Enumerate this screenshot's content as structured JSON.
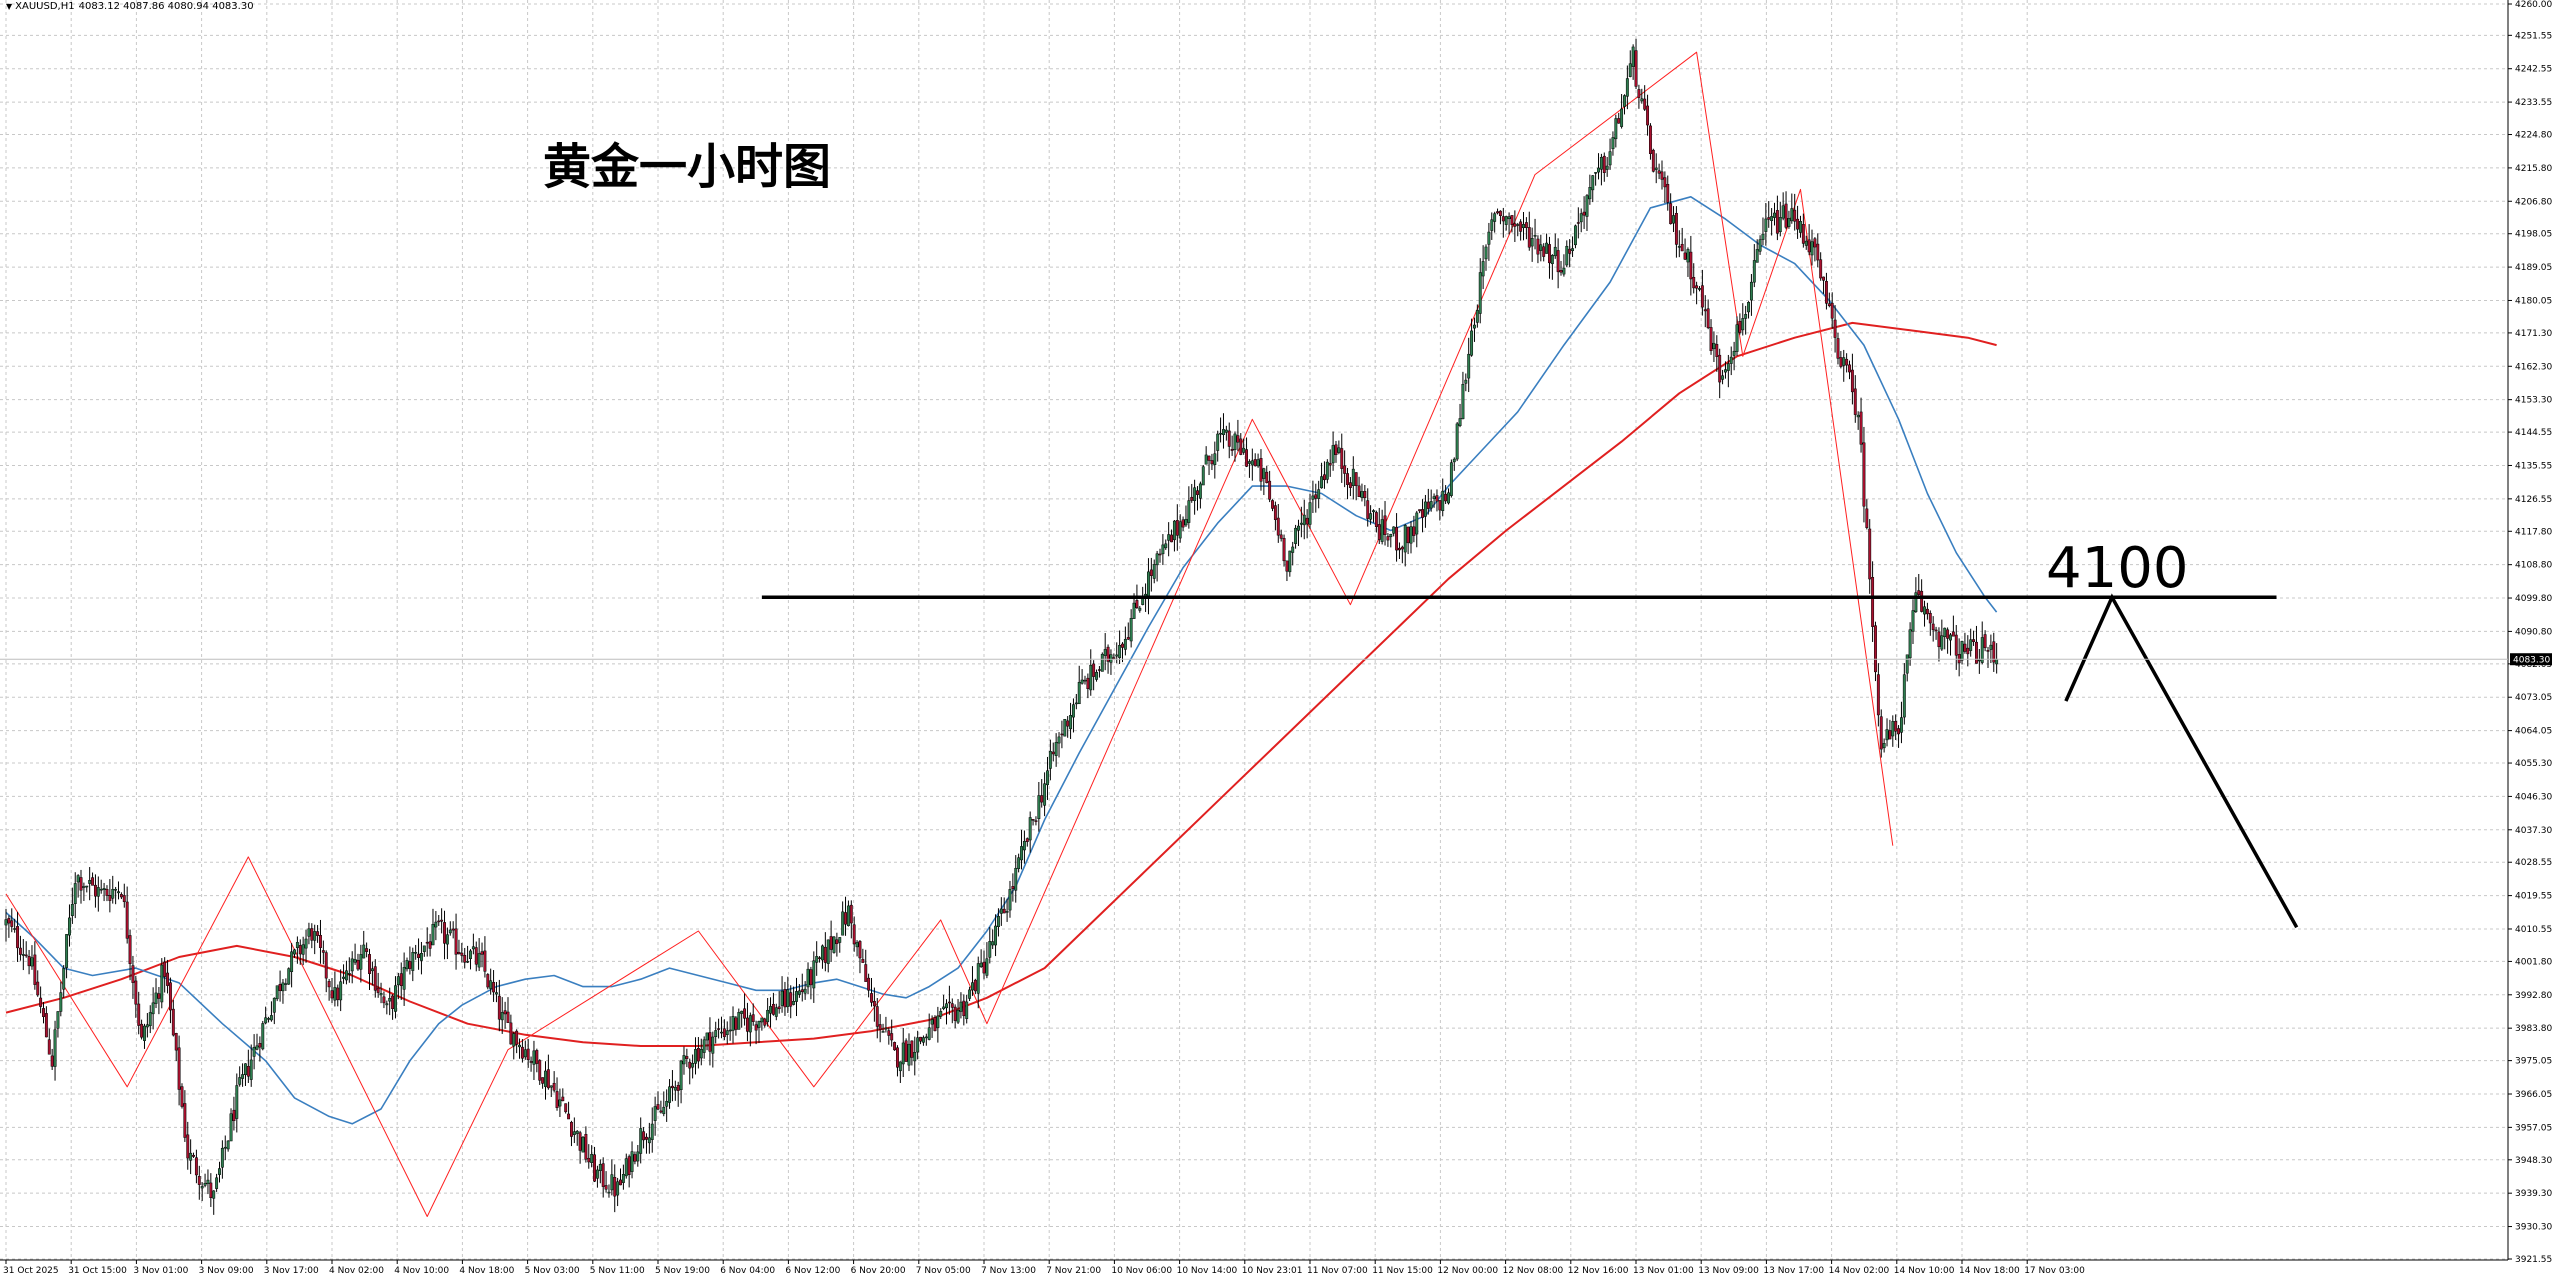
{
  "header": {
    "symbol": "XAUUSD,H1",
    "ohlc": "4083.12 4087.86 4080.94 4083.30"
  },
  "annotations": {
    "title": "黄金一小时图",
    "level_label": "4100"
  },
  "colors": {
    "bull_candle": "#2e7d4f",
    "bear_candle": "#a8102e",
    "ma_fast": "#3a7fc0",
    "ma_slow": "#e02020",
    "zigzag": "#ff2020",
    "grid": "#c8c8c8",
    "drawing": "#000000"
  },
  "chart_data": {
    "type": "candlestick",
    "symbol": "XAUUSD",
    "timeframe": "H1",
    "ylim": [
      3921.55,
      4260.0
    ],
    "y_ticks": [
      "4260.00",
      "4251.55",
      "4242.55",
      "4233.55",
      "4224.80",
      "4215.80",
      "4206.80",
      "4198.05",
      "4189.05",
      "4180.05",
      "4171.30",
      "4162.30",
      "4153.30",
      "4144.55",
      "4135.55",
      "4126.55",
      "4117.80",
      "4108.80",
      "4099.80",
      "4090.80",
      "4082.05",
      "4073.05",
      "4064.05",
      "4055.30",
      "4046.30",
      "4037.30",
      "4028.55",
      "4019.55",
      "4010.55",
      "4001.80",
      "3992.80",
      "3983.80",
      "3975.05",
      "3966.05",
      "3957.05",
      "3948.30",
      "3939.30",
      "3930.30",
      "3921.55"
    ],
    "x_ticks": [
      "31 Oct 2025",
      "31 Oct 15:00",
      "3 Nov 01:00",
      "3 Nov 09:00",
      "3 Nov 17:00",
      "4 Nov 02:00",
      "4 Nov 10:00",
      "4 Nov 18:00",
      "5 Nov 03:00",
      "5 Nov 11:00",
      "5 Nov 19:00",
      "6 Nov 04:00",
      "6 Nov 12:00",
      "6 Nov 20:00",
      "7 Nov 05:00",
      "7 Nov 13:00",
      "7 Nov 21:00",
      "10 Nov 06:00",
      "10 Nov 14:00",
      "10 Nov 23:01",
      "11 Nov 07:00",
      "11 Nov 15:00",
      "12 Nov 00:00",
      "12 Nov 08:00",
      "12 Nov 16:00",
      "13 Nov 01:00",
      "13 Nov 09:00",
      "13 Nov 17:00",
      "14 Nov 02:00",
      "14 Nov 10:00",
      "14 Nov 18:00",
      "17 Nov 03:00"
    ],
    "current_price": 4083.3,
    "horizontal_level": 4100,
    "close_path": [
      [
        0,
        4012
      ],
      [
        8,
        4003
      ],
      [
        16,
        3975
      ],
      [
        24,
        4025
      ],
      [
        33,
        4020
      ],
      [
        40,
        4022
      ],
      [
        47,
        3980
      ],
      [
        55,
        4000
      ],
      [
        63,
        3950
      ],
      [
        72,
        3938
      ],
      [
        80,
        3965
      ],
      [
        88,
        3982
      ],
      [
        96,
        3998
      ],
      [
        106,
        4010
      ],
      [
        114,
        3992
      ],
      [
        124,
        4006
      ],
      [
        132,
        3988
      ],
      [
        140,
        4002
      ],
      [
        150,
        4010
      ],
      [
        158,
        4005
      ],
      [
        165,
        4001
      ],
      [
        172,
        3986
      ],
      [
        180,
        3978
      ],
      [
        188,
        3970
      ],
      [
        196,
        3958
      ],
      [
        204,
        3945
      ],
      [
        212,
        3940
      ],
      [
        220,
        3955
      ],
      [
        228,
        3962
      ],
      [
        236,
        3975
      ],
      [
        244,
        3981
      ],
      [
        252,
        3985
      ],
      [
        260,
        3986
      ],
      [
        268,
        3990
      ],
      [
        276,
        3994
      ],
      [
        284,
        4004
      ],
      [
        292,
        4015
      ],
      [
        300,
        3990
      ],
      [
        308,
        3976
      ],
      [
        316,
        3980
      ],
      [
        324,
        3986
      ],
      [
        332,
        3990
      ],
      [
        340,
        4003
      ],
      [
        348,
        4020
      ],
      [
        356,
        4040
      ],
      [
        364,
        4060
      ],
      [
        372,
        4075
      ],
      [
        380,
        4082
      ],
      [
        388,
        4090
      ],
      [
        396,
        4105
      ],
      [
        404,
        4116
      ],
      [
        412,
        4128
      ],
      [
        420,
        4143
      ],
      [
        428,
        4140
      ],
      [
        436,
        4132
      ],
      [
        444,
        4110
      ],
      [
        452,
        4125
      ],
      [
        460,
        4140
      ],
      [
        468,
        4130
      ],
      [
        476,
        4118
      ],
      [
        484,
        4115
      ],
      [
        492,
        4123
      ],
      [
        500,
        4128
      ],
      [
        508,
        4172
      ],
      [
        516,
        4205
      ],
      [
        524,
        4200
      ],
      [
        532,
        4195
      ],
      [
        540,
        4190
      ],
      [
        548,
        4208
      ],
      [
        556,
        4220
      ],
      [
        564,
        4245
      ],
      [
        570,
        4220
      ],
      [
        578,
        4200
      ],
      [
        586,
        4185
      ],
      [
        594,
        4160
      ],
      [
        602,
        4175
      ],
      [
        610,
        4200
      ],
      [
        618,
        4203
      ],
      [
        626,
        4195
      ],
      [
        634,
        4170
      ],
      [
        642,
        4150
      ],
      [
        650,
        4060
      ],
      [
        656,
        4065
      ],
      [
        662,
        4100
      ],
      [
        670,
        4090
      ],
      [
        678,
        4085
      ],
      [
        686,
        4086
      ],
      [
        690,
        4083.3
      ]
    ],
    "ma_fast_path": [
      [
        0,
        4015
      ],
      [
        10,
        4008
      ],
      [
        20,
        4000
      ],
      [
        30,
        3998
      ],
      [
        45,
        4000
      ],
      [
        60,
        3996
      ],
      [
        75,
        3985
      ],
      [
        90,
        3975
      ],
      [
        100,
        3965
      ],
      [
        112,
        3960
      ],
      [
        120,
        3958
      ],
      [
        130,
        3962
      ],
      [
        140,
        3975
      ],
      [
        150,
        3985
      ],
      [
        158,
        3990
      ],
      [
        170,
        3995
      ],
      [
        180,
        3997
      ],
      [
        190,
        3998
      ],
      [
        200,
        3995
      ],
      [
        210,
        3995
      ],
      [
        220,
        3997
      ],
      [
        230,
        4000
      ],
      [
        240,
        3998
      ],
      [
        250,
        3996
      ],
      [
        260,
        3994
      ],
      [
        270,
        3994
      ],
      [
        280,
        3996
      ],
      [
        288,
        3997
      ],
      [
        296,
        3995
      ],
      [
        304,
        3993
      ],
      [
        312,
        3992
      ],
      [
        320,
        3995
      ],
      [
        330,
        4000
      ],
      [
        340,
        4010
      ],
      [
        350,
        4022
      ],
      [
        360,
        4040
      ],
      [
        372,
        4058
      ],
      [
        384,
        4075
      ],
      [
        396,
        4092
      ],
      [
        408,
        4108
      ],
      [
        420,
        4120
      ],
      [
        432,
        4130
      ],
      [
        444,
        4130
      ],
      [
        456,
        4128
      ],
      [
        468,
        4122
      ],
      [
        480,
        4118
      ],
      [
        492,
        4122
      ],
      [
        500,
        4130
      ],
      [
        512,
        4140
      ],
      [
        524,
        4150
      ],
      [
        540,
        4168
      ],
      [
        556,
        4185
      ],
      [
        570,
        4205
      ],
      [
        584,
        4208
      ],
      [
        596,
        4202
      ],
      [
        608,
        4195
      ],
      [
        620,
        4190
      ],
      [
        632,
        4180
      ],
      [
        644,
        4168
      ],
      [
        656,
        4148
      ],
      [
        666,
        4128
      ],
      [
        676,
        4112
      ],
      [
        686,
        4100
      ],
      [
        690,
        4096
      ]
    ],
    "ma_slow_path": [
      [
        0,
        3988
      ],
      [
        20,
        3992
      ],
      [
        40,
        3997
      ],
      [
        60,
        4003
      ],
      [
        80,
        4006
      ],
      [
        100,
        4003
      ],
      [
        120,
        3998
      ],
      [
        140,
        3991
      ],
      [
        160,
        3985
      ],
      [
        180,
        3982
      ],
      [
        200,
        3980
      ],
      [
        220,
        3979
      ],
      [
        240,
        3979
      ],
      [
        260,
        3980
      ],
      [
        280,
        3981
      ],
      [
        300,
        3983
      ],
      [
        320,
        3986
      ],
      [
        340,
        3992
      ],
      [
        360,
        4000
      ],
      [
        380,
        4015
      ],
      [
        400,
        4030
      ],
      [
        420,
        4045
      ],
      [
        440,
        4060
      ],
      [
        460,
        4075
      ],
      [
        480,
        4090
      ],
      [
        500,
        4105
      ],
      [
        520,
        4118
      ],
      [
        540,
        4130
      ],
      [
        560,
        4142
      ],
      [
        580,
        4155
      ],
      [
        600,
        4165
      ],
      [
        620,
        4170
      ],
      [
        640,
        4174
      ],
      [
        660,
        4172
      ],
      [
        680,
        4170
      ],
      [
        690,
        4168
      ]
    ],
    "zigzag_path": [
      [
        0,
        4020
      ],
      [
        42,
        3968
      ],
      [
        84,
        4030
      ],
      [
        146,
        3933
      ],
      [
        174,
        3978
      ],
      [
        240,
        4010
      ],
      [
        280,
        3968
      ],
      [
        324,
        4013
      ],
      [
        340,
        3985
      ],
      [
        432,
        4148
      ],
      [
        466,
        4098
      ],
      [
        530,
        4214
      ],
      [
        586,
        4247
      ],
      [
        602,
        4165
      ],
      [
        622,
        4210
      ],
      [
        654,
        4033
      ]
    ],
    "drawn_projection": [
      [
        714,
        4072
      ],
      [
        730,
        4100
      ],
      [
        794,
        4011
      ]
    ]
  }
}
